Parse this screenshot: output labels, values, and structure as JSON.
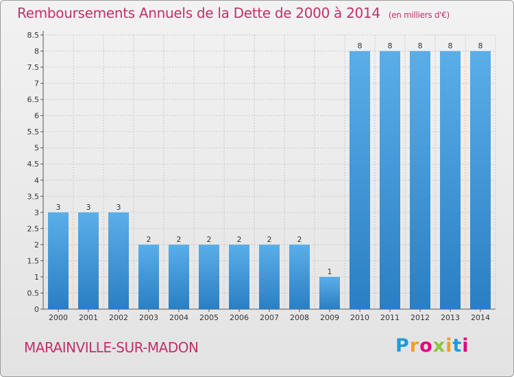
{
  "title": "Remboursements Annuels de la Dette de 2000 à 2014",
  "unit": "(en milliers d'€)",
  "commune": "MARAINVILLE-SUR-MADON",
  "logo": {
    "letters": [
      "P",
      "r",
      "o",
      "x",
      "i",
      "t",
      "i"
    ],
    "colors": [
      "#1e9bd7",
      "#f0a020",
      "#e3007e",
      "#8cc63f",
      "#f0a020",
      "#1e9bd7",
      "#e3007e"
    ]
  },
  "colors": {
    "title": "#c0306a",
    "bar_light": "#5aaee8",
    "bar_dark": "#2a7fc4"
  },
  "chart_data": {
    "type": "bar",
    "title": "Remboursements Annuels de la Dette de 2000 à 2014",
    "xlabel": "",
    "ylabel": "",
    "categories": [
      "2000",
      "2001",
      "2002",
      "2003",
      "2004",
      "2005",
      "2006",
      "2007",
      "2008",
      "2009",
      "2010",
      "2011",
      "2012",
      "2013",
      "2014"
    ],
    "values": [
      3,
      3,
      3,
      2,
      2,
      2,
      2,
      2,
      2,
      1,
      8,
      8,
      8,
      8,
      8
    ],
    "data_labels": [
      "3",
      "3",
      "3",
      "2",
      "2",
      "2",
      "2",
      "2",
      "2",
      "1",
      "8",
      "8",
      "8",
      "8",
      "8"
    ],
    "ylim": [
      0,
      8.5
    ],
    "yticks": [
      "0",
      "0.5",
      "1",
      "1.5",
      "2",
      "2.5",
      "3",
      "3.5",
      "4",
      "4.5",
      "5",
      "5.5",
      "6",
      "6.5",
      "7",
      "7.5",
      "8",
      "8.5"
    ],
    "grid": true
  }
}
